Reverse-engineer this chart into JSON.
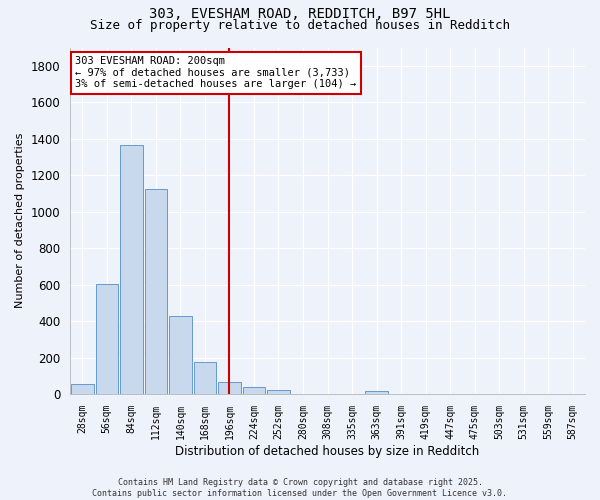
{
  "title_line1": "303, EVESHAM ROAD, REDDITCH, B97 5HL",
  "title_line2": "Size of property relative to detached houses in Redditch",
  "xlabel": "Distribution of detached houses by size in Redditch",
  "ylabel": "Number of detached properties",
  "bins": [
    "28sqm",
    "56sqm",
    "84sqm",
    "112sqm",
    "140sqm",
    "168sqm",
    "196sqm",
    "224sqm",
    "252sqm",
    "280sqm",
    "308sqm",
    "335sqm",
    "363sqm",
    "391sqm",
    "419sqm",
    "447sqm",
    "475sqm",
    "503sqm",
    "531sqm",
    "559sqm",
    "587sqm"
  ],
  "bar_heights": [
    55,
    605,
    1365,
    1125,
    430,
    175,
    65,
    40,
    20,
    0,
    0,
    0,
    15,
    0,
    0,
    0,
    0,
    0,
    0,
    0,
    0
  ],
  "bar_color": "#c8d9ee",
  "bar_edge_color": "#6699cc",
  "ylim": [
    0,
    1900
  ],
  "yticks": [
    0,
    200,
    400,
    600,
    800,
    1000,
    1200,
    1400,
    1600,
    1800
  ],
  "vline_x_idx": 6,
  "vline_color": "#cc0000",
  "ann_line1": "303 EVESHAM ROAD: 200sqm",
  "ann_line2": "← 97% of detached houses are smaller (3,733)",
  "ann_line3": "3% of semi-detached houses are larger (104) →",
  "annotation_box_color": "#cc0000",
  "annotation_bg": "#ffffff",
  "footnote": "Contains HM Land Registry data © Crown copyright and database right 2025.\nContains public sector information licensed under the Open Government Licence v3.0.",
  "bg_color": "#eef2fa",
  "grid_color": "#ffffff",
  "title_fontsize": 10,
  "subtitle_fontsize": 9
}
